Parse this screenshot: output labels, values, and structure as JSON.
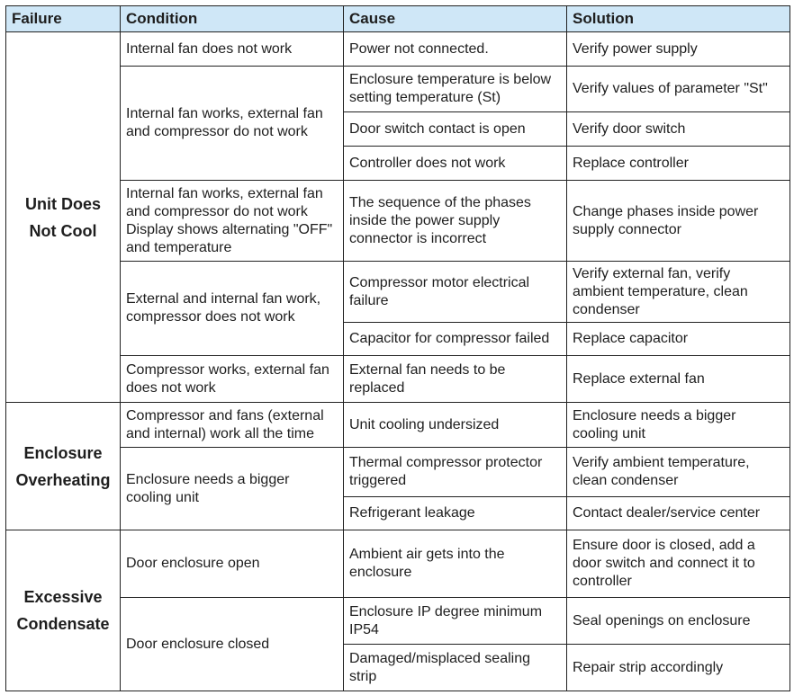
{
  "headers": [
    "Failure",
    "Condition",
    "Cause",
    "Solution"
  ],
  "groups": [
    {
      "failure": "Unit Does Not Cool",
      "conditions": [
        {
          "text": "Internal fan does not work",
          "rows": [
            {
              "cause": "Power not connected.",
              "solution": "Verify power supply"
            }
          ]
        },
        {
          "text": "Internal fan works, external fan and compressor do not work",
          "rows": [
            {
              "cause": "Enclosure temperature is below setting temperature (St)",
              "solution": "Verify values of parameter \"St\""
            },
            {
              "cause": "Door switch contact is open",
              "solution": "Verify door switch"
            },
            {
              "cause": "Controller does not work",
              "solution": "Replace controller"
            }
          ]
        },
        {
          "text": "Internal fan works, external fan and compressor do not work Display shows alternating \"OFF\" and temperature",
          "rows": [
            {
              "cause": "The sequence of the phases inside the power supply connector is incorrect",
              "solution": "Change phases inside power supply connector"
            }
          ]
        },
        {
          "text": "External and internal fan work, compressor does not work",
          "rows": [
            {
              "cause": "Compressor motor electrical failure",
              "solution": "Verify external fan, verify ambient temperature, clean condenser"
            },
            {
              "cause": "Capacitor for compressor failed",
              "solution": "Replace capacitor"
            }
          ]
        },
        {
          "text": "Compressor works, external fan does not work",
          "rows": [
            {
              "cause": "External fan needs to be replaced",
              "solution": "Replace external fan"
            }
          ]
        }
      ]
    },
    {
      "failure": "Enclosure Overheating",
      "conditions": [
        {
          "text": "Compressor and fans (external and internal) work all the time",
          "rows": [
            {
              "cause": "Unit cooling undersized",
              "solution": "Enclosure needs a bigger cooling unit"
            }
          ]
        },
        {
          "text": "Enclosure needs a bigger cooling unit",
          "rows": [
            {
              "cause": "Thermal compressor protector triggered",
              "solution": "Verify ambient temperature, clean condenser"
            },
            {
              "cause": "Refrigerant leakage",
              "solution": "Contact dealer/service center"
            }
          ]
        }
      ]
    },
    {
      "failure": "Excessive Condensate",
      "conditions": [
        {
          "text": "Door enclosure open",
          "rows": [
            {
              "cause": "Ambient air gets into the enclosure",
              "solution": "Ensure door is closed, add a door switch and connect it to controller"
            }
          ]
        },
        {
          "text": "Door enclosure closed",
          "rows": [
            {
              "cause": "Enclosure IP degree minimum IP54",
              "solution": "Seal openings on enclosure"
            },
            {
              "cause": "Damaged/misplaced sealing strip",
              "solution": "Repair strip accordingly"
            }
          ]
        }
      ]
    }
  ]
}
